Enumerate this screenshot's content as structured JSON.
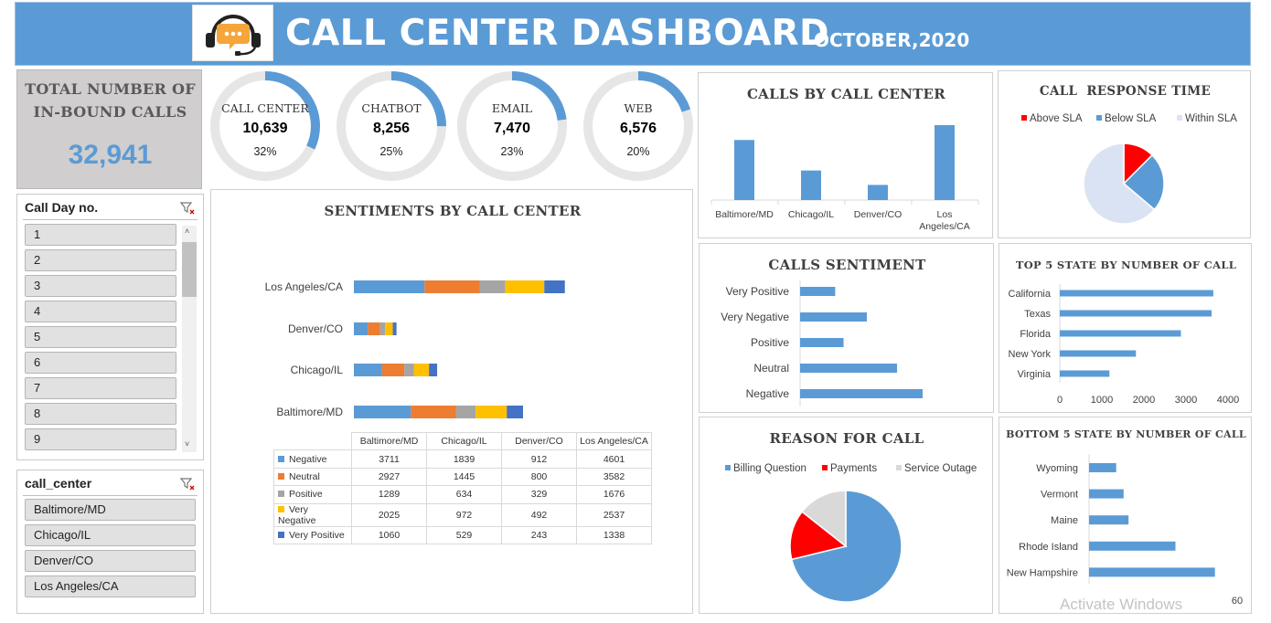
{
  "header": {
    "title": "CALL CENTER DASHBOARD",
    "subtitle": "OCTOBER,2020"
  },
  "total": {
    "label_line1": "TOTAL NUMBER OF",
    "label_line2": "IN-BOUND CALLS",
    "value": "32,941"
  },
  "channels": [
    {
      "label": "CALL CENTER",
      "value": "10,639",
      "pct": "32%",
      "fraction": 0.32
    },
    {
      "label": "CHATBOT",
      "value": "8,256",
      "pct": "25%",
      "fraction": 0.25
    },
    {
      "label": "EMAIL",
      "value": "7,470",
      "pct": "23%",
      "fraction": 0.23
    },
    {
      "label": "WEB",
      "value": "6,576",
      "pct": "20%",
      "fraction": 0.2
    }
  ],
  "slicer_day": {
    "title": "Call Day no.",
    "items": [
      "1",
      "2",
      "3",
      "4",
      "5",
      "6",
      "7",
      "8",
      "9"
    ]
  },
  "slicer_center": {
    "title": "call_center",
    "items": [
      "Baltimore/MD",
      "Chicago/IL",
      "Denver/CO",
      "Los Angeles/CA"
    ]
  },
  "colors": {
    "blue": "#5b9bd5",
    "orange": "#ed7d31",
    "gray": "#a5a5a5",
    "yellow": "#ffc000",
    "darkblue": "#4472c4",
    "red": "#ff0000",
    "lightgray": "#dae3f3"
  },
  "watermark": "Activate Windows",
  "chart_data": [
    {
      "id": "sentiments",
      "type": "bar",
      "orientation": "horizontal-stacked",
      "title": "SENTIMENTS BY CALL CENTER",
      "categories": [
        "Baltimore/MD",
        "Chicago/IL",
        "Denver/CO",
        "Los Angeles/CA"
      ],
      "series": [
        {
          "name": "Negative",
          "color": "#5b9bd5",
          "values": [
            3711,
            1839,
            912,
            4601
          ]
        },
        {
          "name": "Neutral",
          "color": "#ed7d31",
          "values": [
            2927,
            1445,
            800,
            3582
          ]
        },
        {
          "name": "Positive",
          "color": "#a5a5a5",
          "values": [
            1289,
            634,
            329,
            1676
          ]
        },
        {
          "name": "Very Negative",
          "color": "#ffc000",
          "values": [
            2025,
            972,
            492,
            2537
          ]
        },
        {
          "name": "Very Positive",
          "color": "#4472c4",
          "values": [
            1060,
            529,
            243,
            1338
          ]
        }
      ],
      "data_table": true
    },
    {
      "id": "calls_by_center",
      "type": "bar",
      "title": "CALLS BY CALL CENTER",
      "categories": [
        "Baltimore/MD",
        "Chicago/IL",
        "Denver/CO",
        "Los Angeles/CA"
      ],
      "values": [
        11012,
        5419,
        2776,
        13734
      ]
    },
    {
      "id": "response_time",
      "type": "pie",
      "title": "CALL  RESPONSE TIME",
      "legend_position": "top",
      "labels": [
        "Above SLA",
        "Below SLA",
        "Within SLA"
      ],
      "values": [
        4100,
        7800,
        21000
      ],
      "colors": [
        "#ff0000",
        "#5b9bd5",
        "#dae3f3"
      ]
    },
    {
      "id": "calls_sentiment",
      "type": "bar",
      "orientation": "horizontal",
      "title": "CALLS SENTIMENT",
      "categories": [
        "Very Positive",
        "Very Negative",
        "Positive",
        "Neutral",
        "Negative"
      ],
      "values": [
        3170,
        6026,
        3928,
        8754,
        11063
      ]
    },
    {
      "id": "top5_states",
      "type": "bar",
      "orientation": "horizontal",
      "title": "TOP 5 STATE BY NUMBER OF CALL",
      "categories": [
        "California",
        "Texas",
        "Florida",
        "New York",
        "Virginia"
      ],
      "values": [
        3650,
        3610,
        2880,
        1810,
        1180
      ],
      "xlim": [
        0,
        4000
      ],
      "xticks": [
        0,
        1000,
        2000,
        3000,
        4000
      ]
    },
    {
      "id": "reason",
      "type": "pie",
      "title": "REASON FOR CALL",
      "legend_position": "top",
      "labels": [
        "Billing Question",
        "Payments",
        "Service Outage"
      ],
      "values": [
        23462,
        4749,
        4730
      ],
      "colors": [
        "#5b9bd5",
        "#ff0000",
        "#d9d9d9"
      ]
    },
    {
      "id": "bottom5_states",
      "type": "bar",
      "orientation": "horizontal",
      "title": "BOTTOM 5 STATE BY NUMBER OF CALL",
      "categories": [
        "Wyoming",
        "Vermont",
        "Maine",
        "Rhode Island",
        "New Hampshire"
      ],
      "values": [
        11,
        14,
        16,
        35,
        51
      ],
      "xlim": [
        0,
        60
      ],
      "xticks": [
        60
      ]
    }
  ]
}
